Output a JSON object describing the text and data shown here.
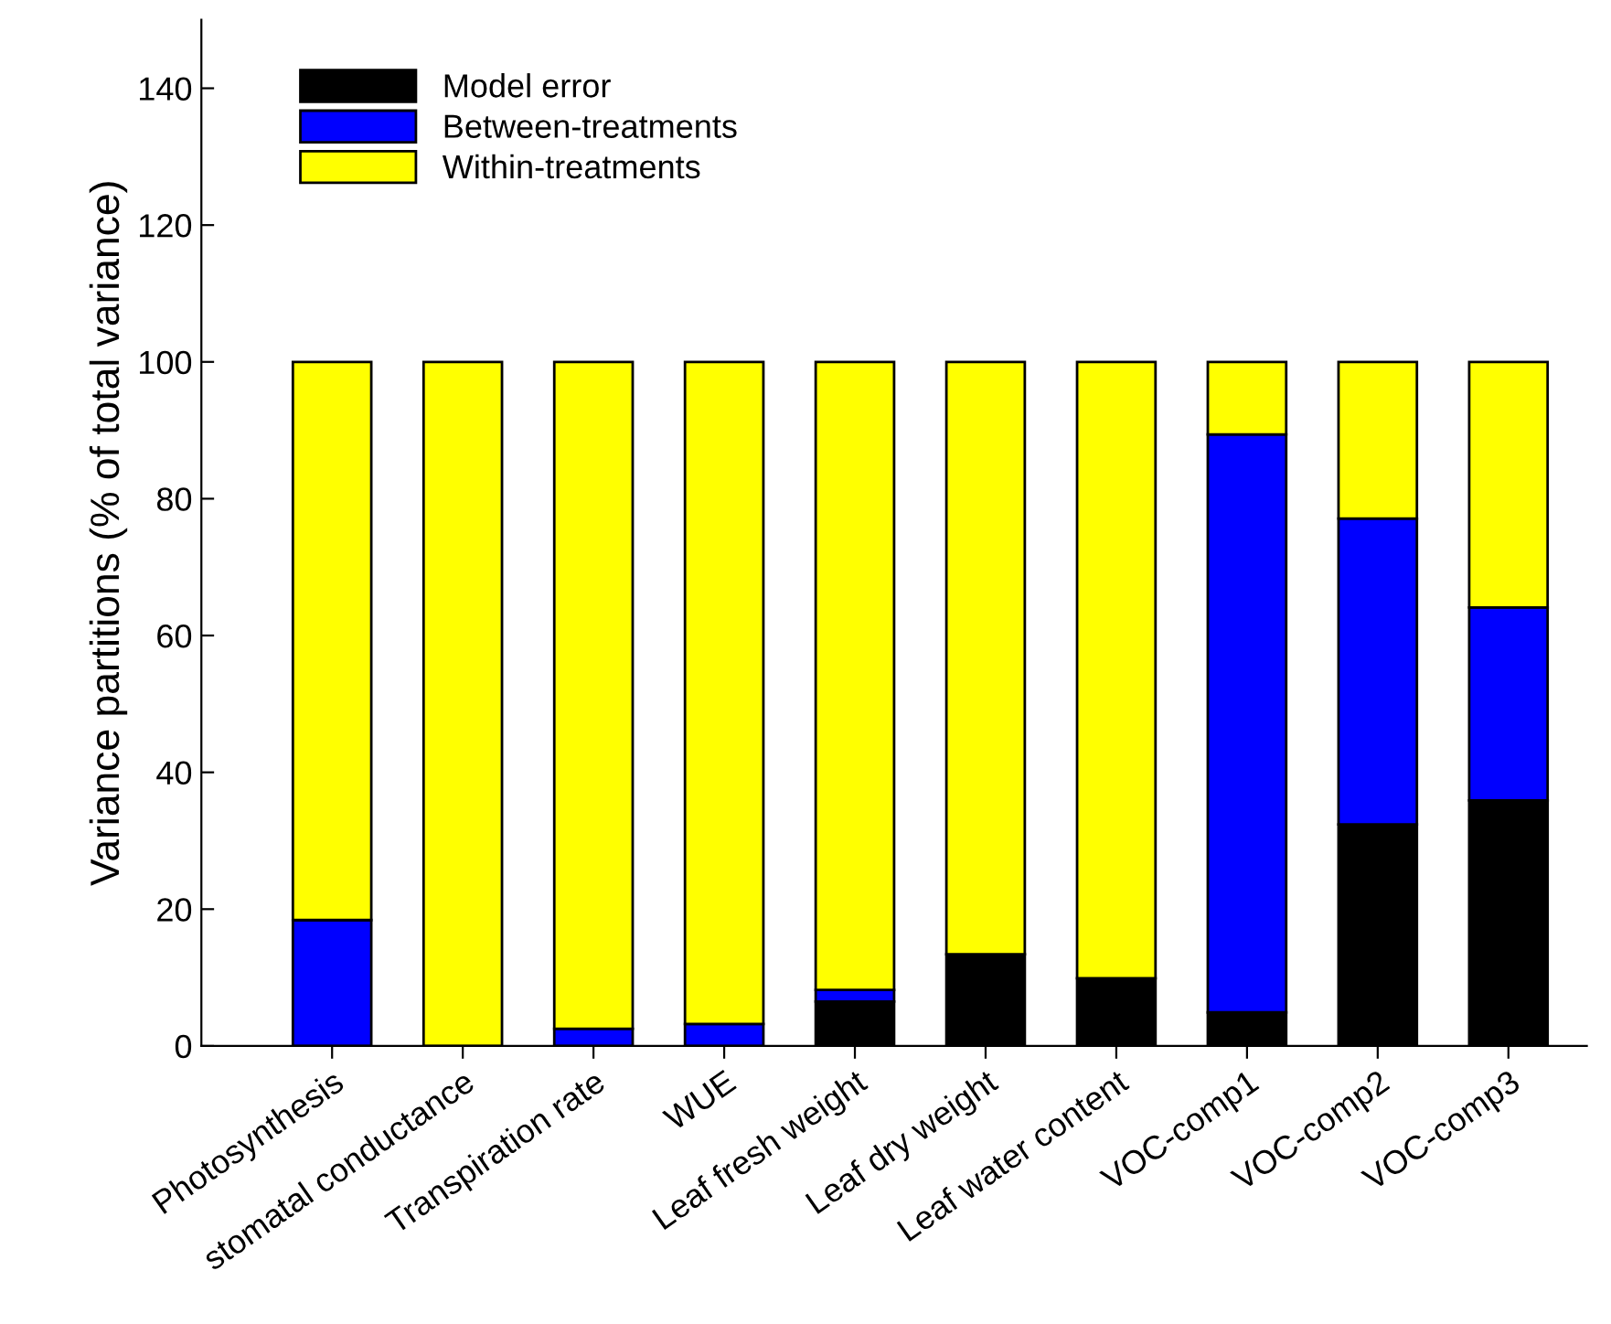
{
  "chart_data": {
    "type": "bar",
    "stacked": true,
    "ylabel": "Variance partitions (% of total variance)",
    "categories": [
      "Photosynthesis",
      "stomatal conductance",
      "Transpiration rate",
      "WUE",
      "Leaf fresh weight",
      "Leaf dry weight",
      "Leaf water content",
      "VOC-comp1",
      "VOC-comp2",
      "VOC-comp3"
    ],
    "series": [
      {
        "name": "Model error",
        "color": "#000000",
        "values": [
          0,
          0,
          0,
          0,
          6.5,
          13.4,
          9.9,
          4.9,
          32.4,
          35.9
        ]
      },
      {
        "name": "Between-treatments",
        "color": "#0000ff",
        "values": [
          18.4,
          0,
          2.5,
          3.2,
          1.7,
          0,
          0,
          84.5,
          44.7,
          28.2
        ]
      },
      {
        "name": "Within-treatments",
        "color": "#ffff00",
        "values": [
          81.6,
          100,
          97.5,
          96.8,
          91.8,
          86.6,
          90.1,
          10.6,
          22.9,
          35.9
        ]
      }
    ],
    "ylim": [
      0,
      150
    ],
    "yticks": [
      0,
      20,
      40,
      60,
      80,
      100,
      120,
      140
    ],
    "grid": false,
    "legend": "top left"
  }
}
